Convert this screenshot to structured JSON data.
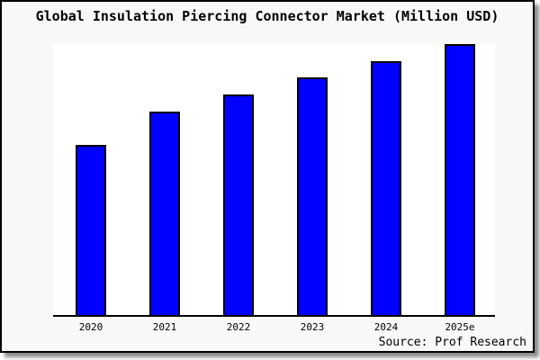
{
  "header": {
    "title": "Global Insulation Piercing Connector Market (Million USD)"
  },
  "footer": {
    "source": "Source: Prof Research"
  },
  "chart_data": {
    "type": "bar",
    "title": "Global Insulation Piercing Connector Market (Million USD)",
    "categories": [
      "2020",
      "2021",
      "2022",
      "2023",
      "2024",
      "2025e"
    ],
    "values": [
      62.8,
      75.1,
      81.4,
      87.7,
      93.7,
      100
    ],
    "values_note": "No numeric y-axis or data labels are shown in the chart; values are a relative index estimated from bar heights with 2025e = 100",
    "xlabel": "",
    "ylabel": "",
    "ylim": [
      0,
      100
    ],
    "grid": false,
    "legend": false,
    "bar_fill_color": "#0000ff",
    "bar_border_color": "#000000",
    "plot_background": "#ffffff",
    "margin_background": "#f8f8f8",
    "source": "Source: Prof Research"
  }
}
